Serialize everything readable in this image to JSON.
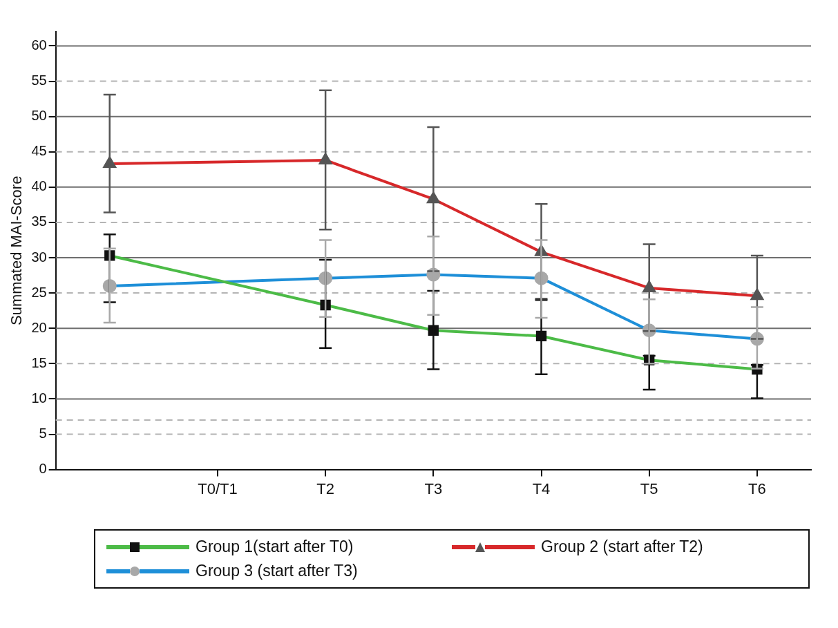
{
  "chart_data": {
    "type": "line",
    "ylabel": "Summated MAI-Score",
    "categories": [
      null,
      "T0/T1",
      "T2",
      "T3",
      "T4",
      "T5",
      "T6"
    ],
    "series": [
      {
        "name": "Group 1(start after T0)",
        "color": "#4cbb47",
        "marker": "square",
        "values": [
          30.3,
          null,
          23.3,
          19.7,
          18.9,
          15.5,
          14.2
        ],
        "errors": [
          [
            23.7,
            33.3
          ],
          null,
          [
            17.2,
            29.7
          ],
          [
            14.2,
            25.3
          ],
          [
            13.5,
            24.0
          ],
          [
            11.3,
            16.1
          ],
          [
            10.1,
            14.8
          ]
        ]
      },
      {
        "name": "Group 2 (start after T2)",
        "color": "#d7282a",
        "marker": "triangle",
        "values": [
          43.3,
          null,
          43.8,
          38.3,
          30.8,
          25.7,
          24.6
        ],
        "errors": [
          [
            36.4,
            53.1
          ],
          null,
          [
            34.0,
            53.7
          ],
          [
            28.1,
            48.5
          ],
          [
            24.2,
            37.6
          ],
          [
            19.6,
            31.9
          ],
          [
            18.5,
            30.3
          ]
        ]
      },
      {
        "name": "Group 3 (start after T3)",
        "color": "#1e8fd8",
        "marker": "circle",
        "values": [
          26.0,
          null,
          27.1,
          27.6,
          27.1,
          19.7,
          18.5
        ],
        "errors": [
          [
            20.8,
            31.3
          ],
          null,
          [
            21.6,
            32.5
          ],
          [
            21.9,
            33.0
          ],
          [
            21.5,
            32.5
          ],
          [
            15.0,
            24.1
          ],
          [
            14.3,
            23.0
          ]
        ]
      }
    ],
    "ylim": [
      0,
      62
    ],
    "yticks": [
      0,
      5,
      10,
      15,
      20,
      25,
      30,
      35,
      40,
      45,
      50,
      55,
      60
    ],
    "grid": "y",
    "ref_lines": [
      {
        "axis": "y",
        "value": 7,
        "line_style": "dashed"
      }
    ],
    "legend": "bottom"
  }
}
